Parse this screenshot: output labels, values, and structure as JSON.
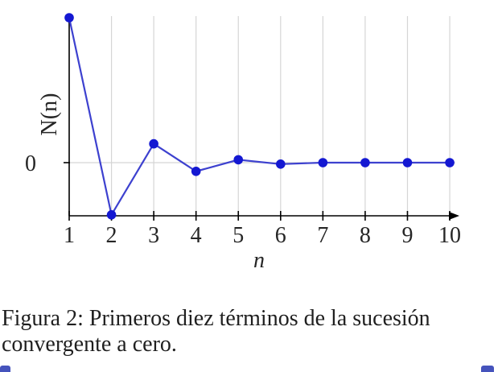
{
  "page": {
    "background": "#ffffff"
  },
  "figure": {
    "caption": {
      "lines": [
        "Figura 2: Primeros diez términos de la sucesión",
        "convergente a cero."
      ]
    }
  },
  "chart_data": {
    "type": "line",
    "title": "",
    "xlabel": "n",
    "ylabel": "N(n)",
    "x": [
      1,
      2,
      3,
      4,
      5,
      6,
      7,
      8,
      9,
      10
    ],
    "values": [
      1.0,
      -0.36,
      0.13,
      -0.06,
      0.02,
      -0.01,
      0,
      0,
      0,
      0
    ],
    "xtick_labels": [
      "1",
      "2",
      "3",
      "4",
      "5",
      "6",
      "7",
      "8",
      "9",
      "10"
    ],
    "ytick_values": [
      0
    ],
    "ytick_labels": [
      "0"
    ],
    "xlim": [
      1,
      10
    ],
    "ylim": [
      -0.37,
      1.0
    ],
    "grid": {
      "vertical_at_xticks": true,
      "horizontal_at_yticks": true
    },
    "legend": "none",
    "marker": "filled-circle",
    "x_axis_arrow": true,
    "colors": {
      "marker_fill": "#1418d2",
      "line": "#3d41cf",
      "grid": "#d5d5d5",
      "axis": "#000000",
      "text": "#262626"
    }
  },
  "edge_marks": {
    "color": "#4553bc"
  }
}
